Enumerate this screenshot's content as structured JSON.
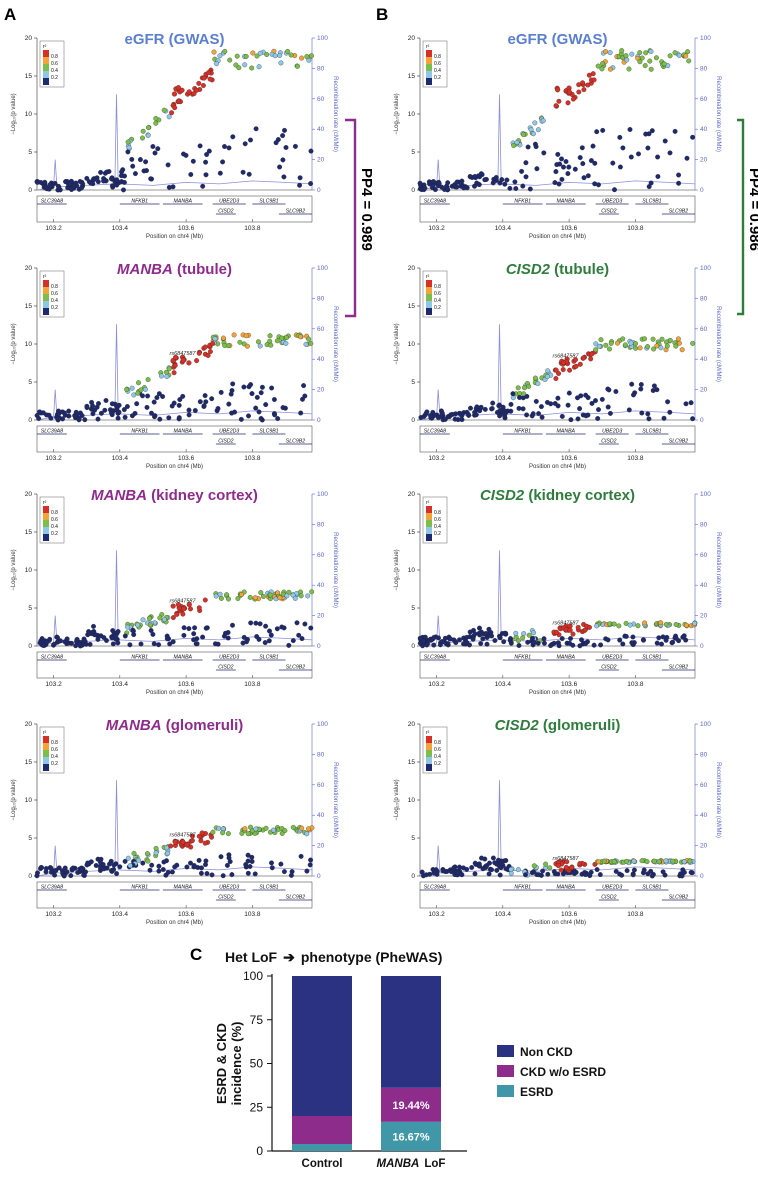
{
  "panels": [
    {
      "letter": "A"
    },
    {
      "letter": "B"
    },
    {
      "letter": "C"
    }
  ],
  "colors": {
    "eGFR": "#5b7fcf",
    "MANBA": "#8e2c8c",
    "CISD2": "#2e7d3c",
    "recomb": "#8c8fd6",
    "ld": [
      "#1f2a6e",
      "#8ec7e8",
      "#7bbf4a",
      "#f2a33a",
      "#d73127"
    ],
    "nonCKD": "#2b3282",
    "ckdNoEsrd": "#8e2c8c",
    "esrd": "#3f97a8"
  },
  "coloc": [
    {
      "label": "PP4 = 0.989",
      "color": "#8e2c8c"
    },
    {
      "label": "PP4 = 0.986",
      "color": "#2e7d3c"
    }
  ],
  "locus": {
    "xlabel": "Position on chr4 (Mb)",
    "ylabel": "−Log₁₀(p value)",
    "rlabel": "Recombination rate (cM/Mb)",
    "yticks": [
      "0",
      "5",
      "10",
      "15",
      "20"
    ],
    "rticks": [
      "0",
      "20",
      "40",
      "60",
      "80",
      "100"
    ],
    "xticks": [
      "103.2",
      "103.4",
      "103.6",
      "103.8"
    ],
    "legendTitle": "r²",
    "legendLevels": [
      "0.8",
      "0.6",
      "0.4",
      "0.2"
    ],
    "genes": [
      "SLC39A8",
      "NFKB1",
      "MANBA",
      "UBE2D3",
      "SLC9B1",
      "CISD2",
      "SLC9B2"
    ],
    "snpLabel": "rs6847587"
  },
  "chart_data": [
    {
      "type": "scatter",
      "panel": "A",
      "title": "eGFR (GWAS)",
      "titleGene": "",
      "titleRest": "eGFR (GWAS)",
      "titleColor": "#5b7fcf",
      "peak": 18,
      "xlabel": "Position on chr4 (Mb)",
      "ylim": [
        0,
        20
      ],
      "xlim": [
        103.15,
        103.98
      ]
    },
    {
      "type": "scatter",
      "panel": "B",
      "title": "eGFR (GWAS)",
      "titleGene": "",
      "titleRest": "eGFR (GWAS)",
      "titleColor": "#5b7fcf",
      "peak": 18,
      "xlabel": "Position on chr4 (Mb)",
      "ylim": [
        0,
        20
      ],
      "xlim": [
        103.15,
        103.98
      ]
    },
    {
      "type": "scatter",
      "panel": "A",
      "title": "MANBA (tubule)",
      "titleGene": "MANBA",
      "titleRest": " (tubule)",
      "titleColor": "#8e2c8c",
      "peak": 11,
      "xlabel": "Position on chr4 (Mb)",
      "ylim": [
        0,
        20
      ],
      "xlim": [
        103.15,
        103.98
      ]
    },
    {
      "type": "scatter",
      "panel": "B",
      "title": "CISD2 (tubule)",
      "titleGene": "CISD2",
      "titleRest": " (tubule)",
      "titleColor": "#2e7d3c",
      "peak": 10.5,
      "xlabel": "Position on chr4 (Mb)",
      "ylim": [
        0,
        20
      ],
      "xlim": [
        103.15,
        103.98
      ]
    },
    {
      "type": "scatter",
      "panel": "A",
      "title": "MANBA (kidney cortex)",
      "titleGene": "MANBA",
      "titleRest": " (kidney cortex)",
      "titleColor": "#8e2c8c",
      "peak": 7,
      "xlabel": "Position on chr4 (Mb)",
      "ylim": [
        0,
        20
      ],
      "xlim": [
        103.15,
        103.98
      ]
    },
    {
      "type": "scatter",
      "panel": "B",
      "title": "CISD2 (kidney cortex)",
      "titleGene": "CISD2",
      "titleRest": " (kidney cortex)",
      "titleColor": "#2e7d3c",
      "peak": 3,
      "xlabel": "Position on chr4 (Mb)",
      "ylim": [
        0,
        20
      ],
      "xlim": [
        103.15,
        103.98
      ]
    },
    {
      "type": "scatter",
      "panel": "A",
      "title": "MANBA (glomeruli)",
      "titleGene": "MANBA",
      "titleRest": " (glomeruli)",
      "titleColor": "#8e2c8c",
      "peak": 6.3,
      "xlabel": "Position on chr4 (Mb)",
      "ylim": [
        0,
        20
      ],
      "xlim": [
        103.15,
        103.98
      ]
    },
    {
      "type": "scatter",
      "panel": "B",
      "title": "CISD2 (glomeruli)",
      "titleGene": "CISD2",
      "titleRest": " (glomeruli)",
      "titleColor": "#2e7d3c",
      "peak": 2,
      "xlabel": "Position on chr4 (Mb)",
      "ylim": [
        0,
        20
      ],
      "xlim": [
        103.15,
        103.98
      ]
    },
    {
      "type": "bar",
      "panel": "C",
      "title": "Het  LoF → phenotype (PheWAS)",
      "titlePre": "Het  LoF",
      "titlePost": "phenotype (PheWAS)",
      "ylabel": "ESRD & CKD incidence (%)",
      "ylabelLine1": "ESRD & CKD",
      "ylabelLine2": "incidence (%)",
      "ylim": [
        0,
        100
      ],
      "yticks": [
        "0",
        "25",
        "50",
        "75",
        "100"
      ],
      "categories": [
        "Control",
        "MANBA LoF"
      ],
      "categoryParts": [
        [
          "",
          "Control"
        ],
        [
          "MANBA",
          "LoF"
        ]
      ],
      "series": [
        {
          "name": "ESRD",
          "values": [
            4,
            16.67
          ]
        },
        {
          "name": "CKD w/o ESRD",
          "values": [
            16,
            19.44
          ]
        },
        {
          "name": "Non CKD",
          "values": [
            80,
            63.89
          ]
        }
      ],
      "dataLabels": {
        "esrd": "16.67%",
        "ckd": "19.44%"
      },
      "legend": [
        "Non CKD",
        "CKD w/o ESRD",
        "ESRD"
      ]
    }
  ]
}
